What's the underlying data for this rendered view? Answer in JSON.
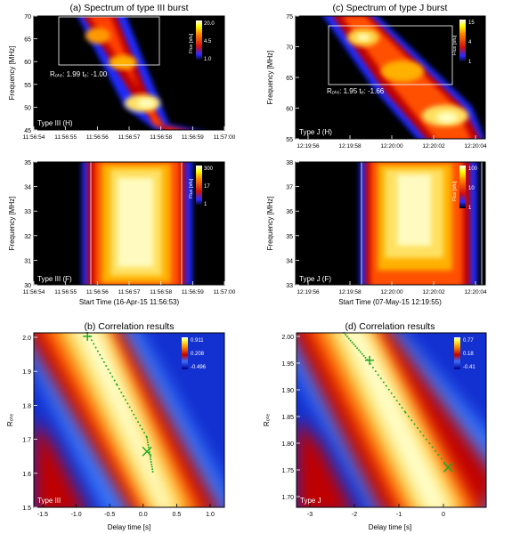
{
  "panels": {
    "a": {
      "title": "(a) Spectrum of type III burst",
      "ylabel": "Frequency [MHz]",
      "xlabel": "Start Time (16-Apr-15 11:56:53)",
      "top": {
        "label": "Type III (H)",
        "annotation": "Rₒₜₑ: 1.99  tₑ: -1.00",
        "ylim": [
          45,
          70
        ],
        "yticks": [
          "70",
          "65",
          "60",
          "55",
          "50",
          "45"
        ],
        "colorbar": {
          "label": "Flux [sfu]",
          "ticks": [
            "20.0",
            "4.5",
            "1.0"
          ]
        }
      },
      "bottom": {
        "label": "Type III (F)",
        "ylim": [
          30,
          35
        ],
        "yticks": [
          "35",
          "34",
          "33",
          "32",
          "31",
          "30"
        ],
        "colorbar": {
          "label": "Flux [sfu]",
          "ticks": [
            "300",
            "17",
            "1"
          ]
        }
      },
      "xticks": [
        "11:56:54",
        "11:56:55",
        "11:56:56",
        "11:56:57",
        "11:56:58",
        "11:56:59",
        "11:57:00"
      ]
    },
    "c": {
      "title": "(c) Spectrum of type J burst",
      "ylabel": "Frequency [MHz]",
      "xlabel": "Start Time (07-May-15 12:19:55)",
      "top": {
        "label": "Type J (H)",
        "annotation": "Rₒₜₑ: 1.95  tₑ: -1.66",
        "ylim": [
          55,
          75
        ],
        "yticks": [
          "75",
          "70",
          "65",
          "60",
          "55"
        ],
        "colorbar": {
          "label": "Flux [sfu]",
          "ticks": [
            "15",
            "4",
            "1"
          ]
        }
      },
      "bottom": {
        "label": "Type J (F)",
        "ylim": [
          33,
          38
        ],
        "yticks": [
          "38",
          "37",
          "36",
          "35",
          "34",
          "33"
        ],
        "colorbar": {
          "label": "Flux [sfu]",
          "ticks": [
            "100",
            "10",
            "1"
          ]
        }
      },
      "xticks": [
        "12:19:56",
        "12:19:58",
        "12:20:00",
        "12:20:02",
        "12:20:04"
      ]
    },
    "b": {
      "title": "(b) Correlation results",
      "ylabel": "Rₒₜₑ",
      "xlabel": "Delay time [s]",
      "label": "Type III",
      "xticks": [
        "-1.5",
        "-1.0",
        "-0.5",
        "0.0",
        "0.5",
        "1.0"
      ],
      "yticks": [
        "2.0",
        "1.9",
        "1.8",
        "1.7",
        "1.6",
        "1.5"
      ],
      "colorbar": {
        "ticks": [
          "0.911",
          "0.208",
          "-0.496"
        ]
      }
    },
    "d": {
      "title": "(d) Correlation results",
      "ylabel": "Rₒₜₑ",
      "xlabel": "Delay time [s]",
      "label": "Type J",
      "xticks": [
        "-3",
        "-2",
        "-1",
        "0"
      ],
      "yticks": [
        "2.00",
        "1.95",
        "1.90",
        "1.85",
        "1.80",
        "1.75",
        "1.70"
      ],
      "colorbar": {
        "ticks": [
          "0.77",
          "0.18",
          "-0.41"
        ]
      }
    }
  },
  "colors": {
    "background": "#000000",
    "accent_green": "#22aa22",
    "frame": "#ffffff"
  },
  "chart_data": [
    {
      "type": "heatmap",
      "panel": "a-top",
      "xlim_s": [
        53,
        60
      ],
      "ylim": [
        45,
        70
      ],
      "ridge": {
        "x_s": [
          55.3,
          56.0,
          56.5,
          57.0,
          57.5,
          58.2,
          58.6
        ],
        "y": [
          70,
          66,
          61,
          57,
          53,
          49,
          45
        ]
      },
      "box": {
        "x_s": [
          54.9,
          57.9
        ],
        "y": [
          60,
          69
        ]
      },
      "rotate": 1.99,
      "delay_s": -1.0
    },
    {
      "type": "heatmap",
      "panel": "a-bottom",
      "xlim_s": [
        53,
        60
      ],
      "ylim": [
        30,
        35
      ],
      "band_s": [
        56.0,
        58.3
      ],
      "vlines_s": [
        55.8,
        58.7
      ]
    },
    {
      "type": "heatmap",
      "panel": "c-top",
      "xlim_s": [
        55,
        64.5
      ],
      "ylim": [
        55,
        75
      ],
      "ridge": {
        "x_s": [
          58.8,
          59.7,
          60.5,
          61.4,
          62.2,
          63.2
        ],
        "y": [
          75,
          70,
          66,
          62,
          59,
          55
        ]
      },
      "box": {
        "x_s": [
          57.0,
          62.5
        ],
        "y": [
          64.5,
          72.5
        ]
      },
      "rotate": 1.95,
      "delay_s": -1.66
    },
    {
      "type": "heatmap",
      "panel": "c-bottom",
      "xlim_s": [
        55,
        64.5
      ],
      "ylim": [
        33,
        38
      ],
      "band_s": [
        59.8,
        63.0
      ],
      "vlines_s": [
        58.3,
        64.2
      ]
    },
    {
      "type": "heatmap",
      "panel": "b",
      "xlim": [
        -1.9,
        1.3
      ],
      "ylim": [
        1.5,
        2.0
      ],
      "ridge": {
        "x": [
          -1.0,
          -0.5,
          0.0,
          0.1
        ],
        "y": [
          2.0,
          1.85,
          1.7,
          1.6
        ]
      },
      "markers": [
        {
          "shape": "plus",
          "x": -1.0,
          "y": 1.99
        },
        {
          "shape": "x",
          "x": 0.0,
          "y": 1.66
        }
      ],
      "colorbar_range": [
        -0.496,
        0.911
      ]
    },
    {
      "type": "heatmap",
      "panel": "d",
      "xlim": [
        -3.2,
        0.8
      ],
      "ylim": [
        1.65,
        2.0
      ],
      "ridge": {
        "x": [
          -2.2,
          -1.7,
          -0.9,
          0.0
        ],
        "y": [
          2.0,
          1.945,
          1.84,
          1.73
        ]
      },
      "markers": [
        {
          "shape": "plus",
          "x": -1.66,
          "y": 1.945
        },
        {
          "shape": "x",
          "x": 0.0,
          "y": 1.73
        }
      ],
      "colorbar_range": [
        -0.41,
        0.77
      ]
    }
  ]
}
